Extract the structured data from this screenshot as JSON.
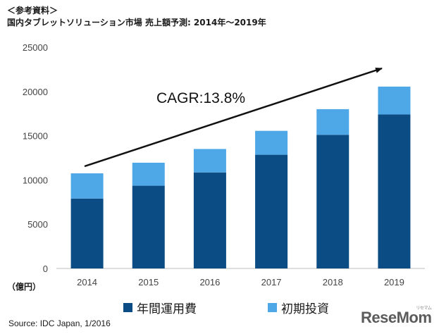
{
  "header": {
    "reference": "＜参考資料＞",
    "title": "国内タブレットソリューション市場 売上額予測: 2014年～2019年"
  },
  "chart_data": {
    "type": "bar",
    "stacked": true,
    "categories": [
      "2014",
      "2015",
      "2016",
      "2017",
      "2018",
      "2019"
    ],
    "series": [
      {
        "name": "年間運用費",
        "values": [
          7900,
          9350,
          10850,
          12850,
          15100,
          17400
        ],
        "color": "#0b4c84"
      },
      {
        "name": "初期投資",
        "values": [
          2850,
          2600,
          2650,
          2700,
          2900,
          3150
        ],
        "color": "#4ea7e6"
      }
    ],
    "ylim": [
      0,
      25000
    ],
    "yticks": [
      "0",
      "5000",
      "10000",
      "15000",
      "20000",
      "25000"
    ],
    "ylabel": "（億円）",
    "annotation": "CAGR:13.8%",
    "legend_position": "bottom",
    "grid": false
  },
  "source": "Source: IDC Japan, 1/2016",
  "watermark": {
    "main": "ReseMom",
    "sub": "リセマム"
  }
}
